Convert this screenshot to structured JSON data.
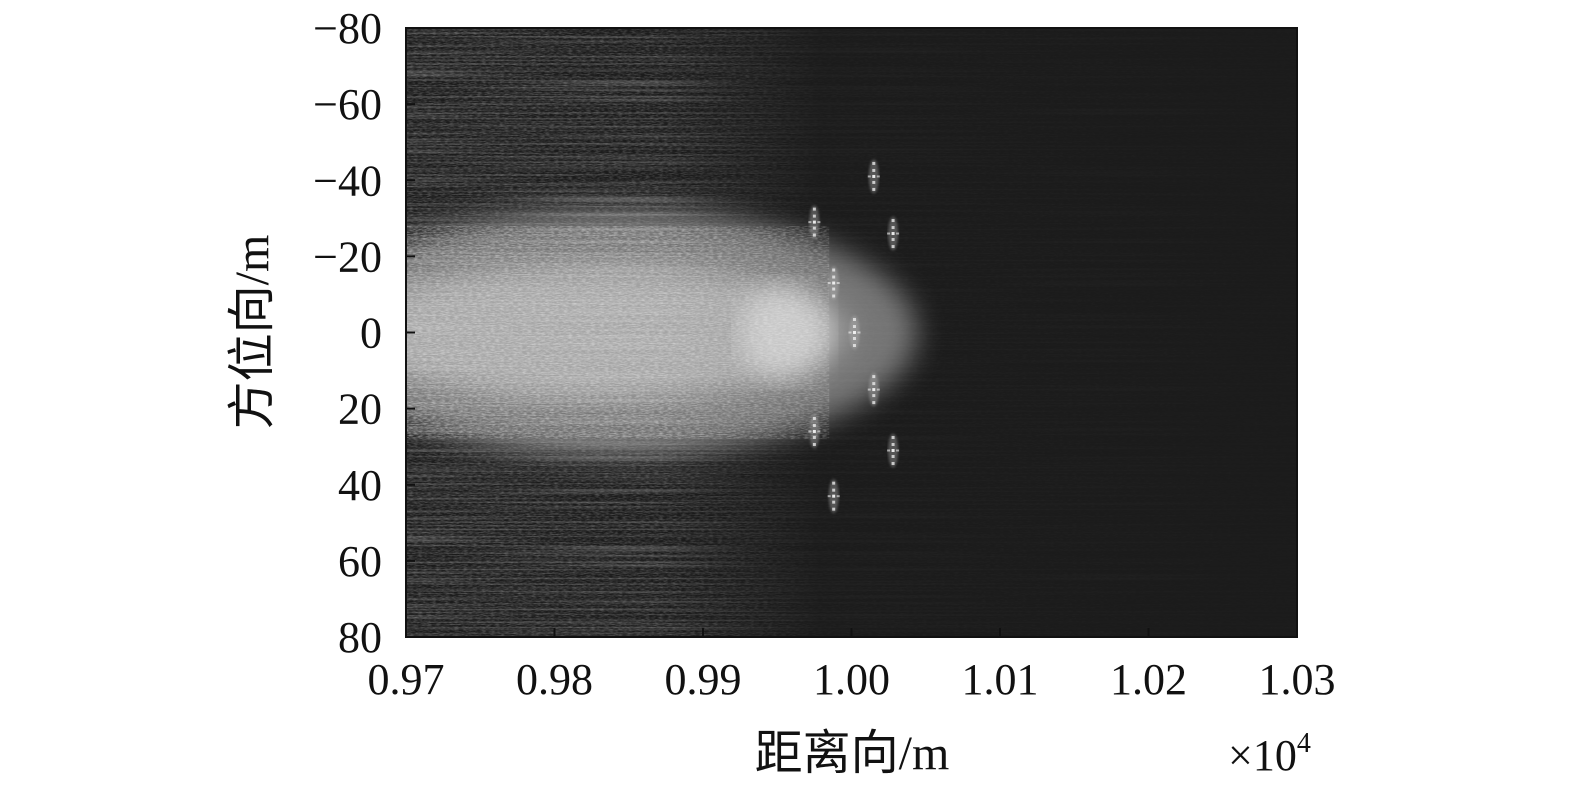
{
  "chart_data": {
    "type": "heatmap",
    "xlabel": "距离向/m",
    "ylabel": "方位向/m",
    "x_multiplier": {
      "base": "×10",
      "exponent": "4"
    },
    "xlim": [
      0.97,
      1.03
    ],
    "ylim": [
      -80,
      80
    ],
    "y_reversed": true,
    "x_ticks": [
      "0.97",
      "0.98",
      "0.99",
      "1.00",
      "1.01",
      "1.02",
      "1.03"
    ],
    "y_ticks": [
      "−80",
      "−60",
      "−40",
      "−20",
      "0",
      "20",
      "40",
      "60",
      "80"
    ],
    "colormap": "gray",
    "grid": false,
    "point_targets": [
      {
        "x": 1.0015,
        "y": -41
      },
      {
        "x": 0.9975,
        "y": -29
      },
      {
        "x": 1.0028,
        "y": -26
      },
      {
        "x": 0.9988,
        "y": -13
      },
      {
        "x": 1.0002,
        "y": 0
      },
      {
        "x": 1.0015,
        "y": 15
      },
      {
        "x": 0.9975,
        "y": 26
      },
      {
        "x": 1.0028,
        "y": 31
      },
      {
        "x": 0.9988,
        "y": 43
      }
    ],
    "colors": {
      "background": "#1b1b1b",
      "bright_region": "#e0e0e0",
      "point_target": "#f2f2f2"
    }
  }
}
